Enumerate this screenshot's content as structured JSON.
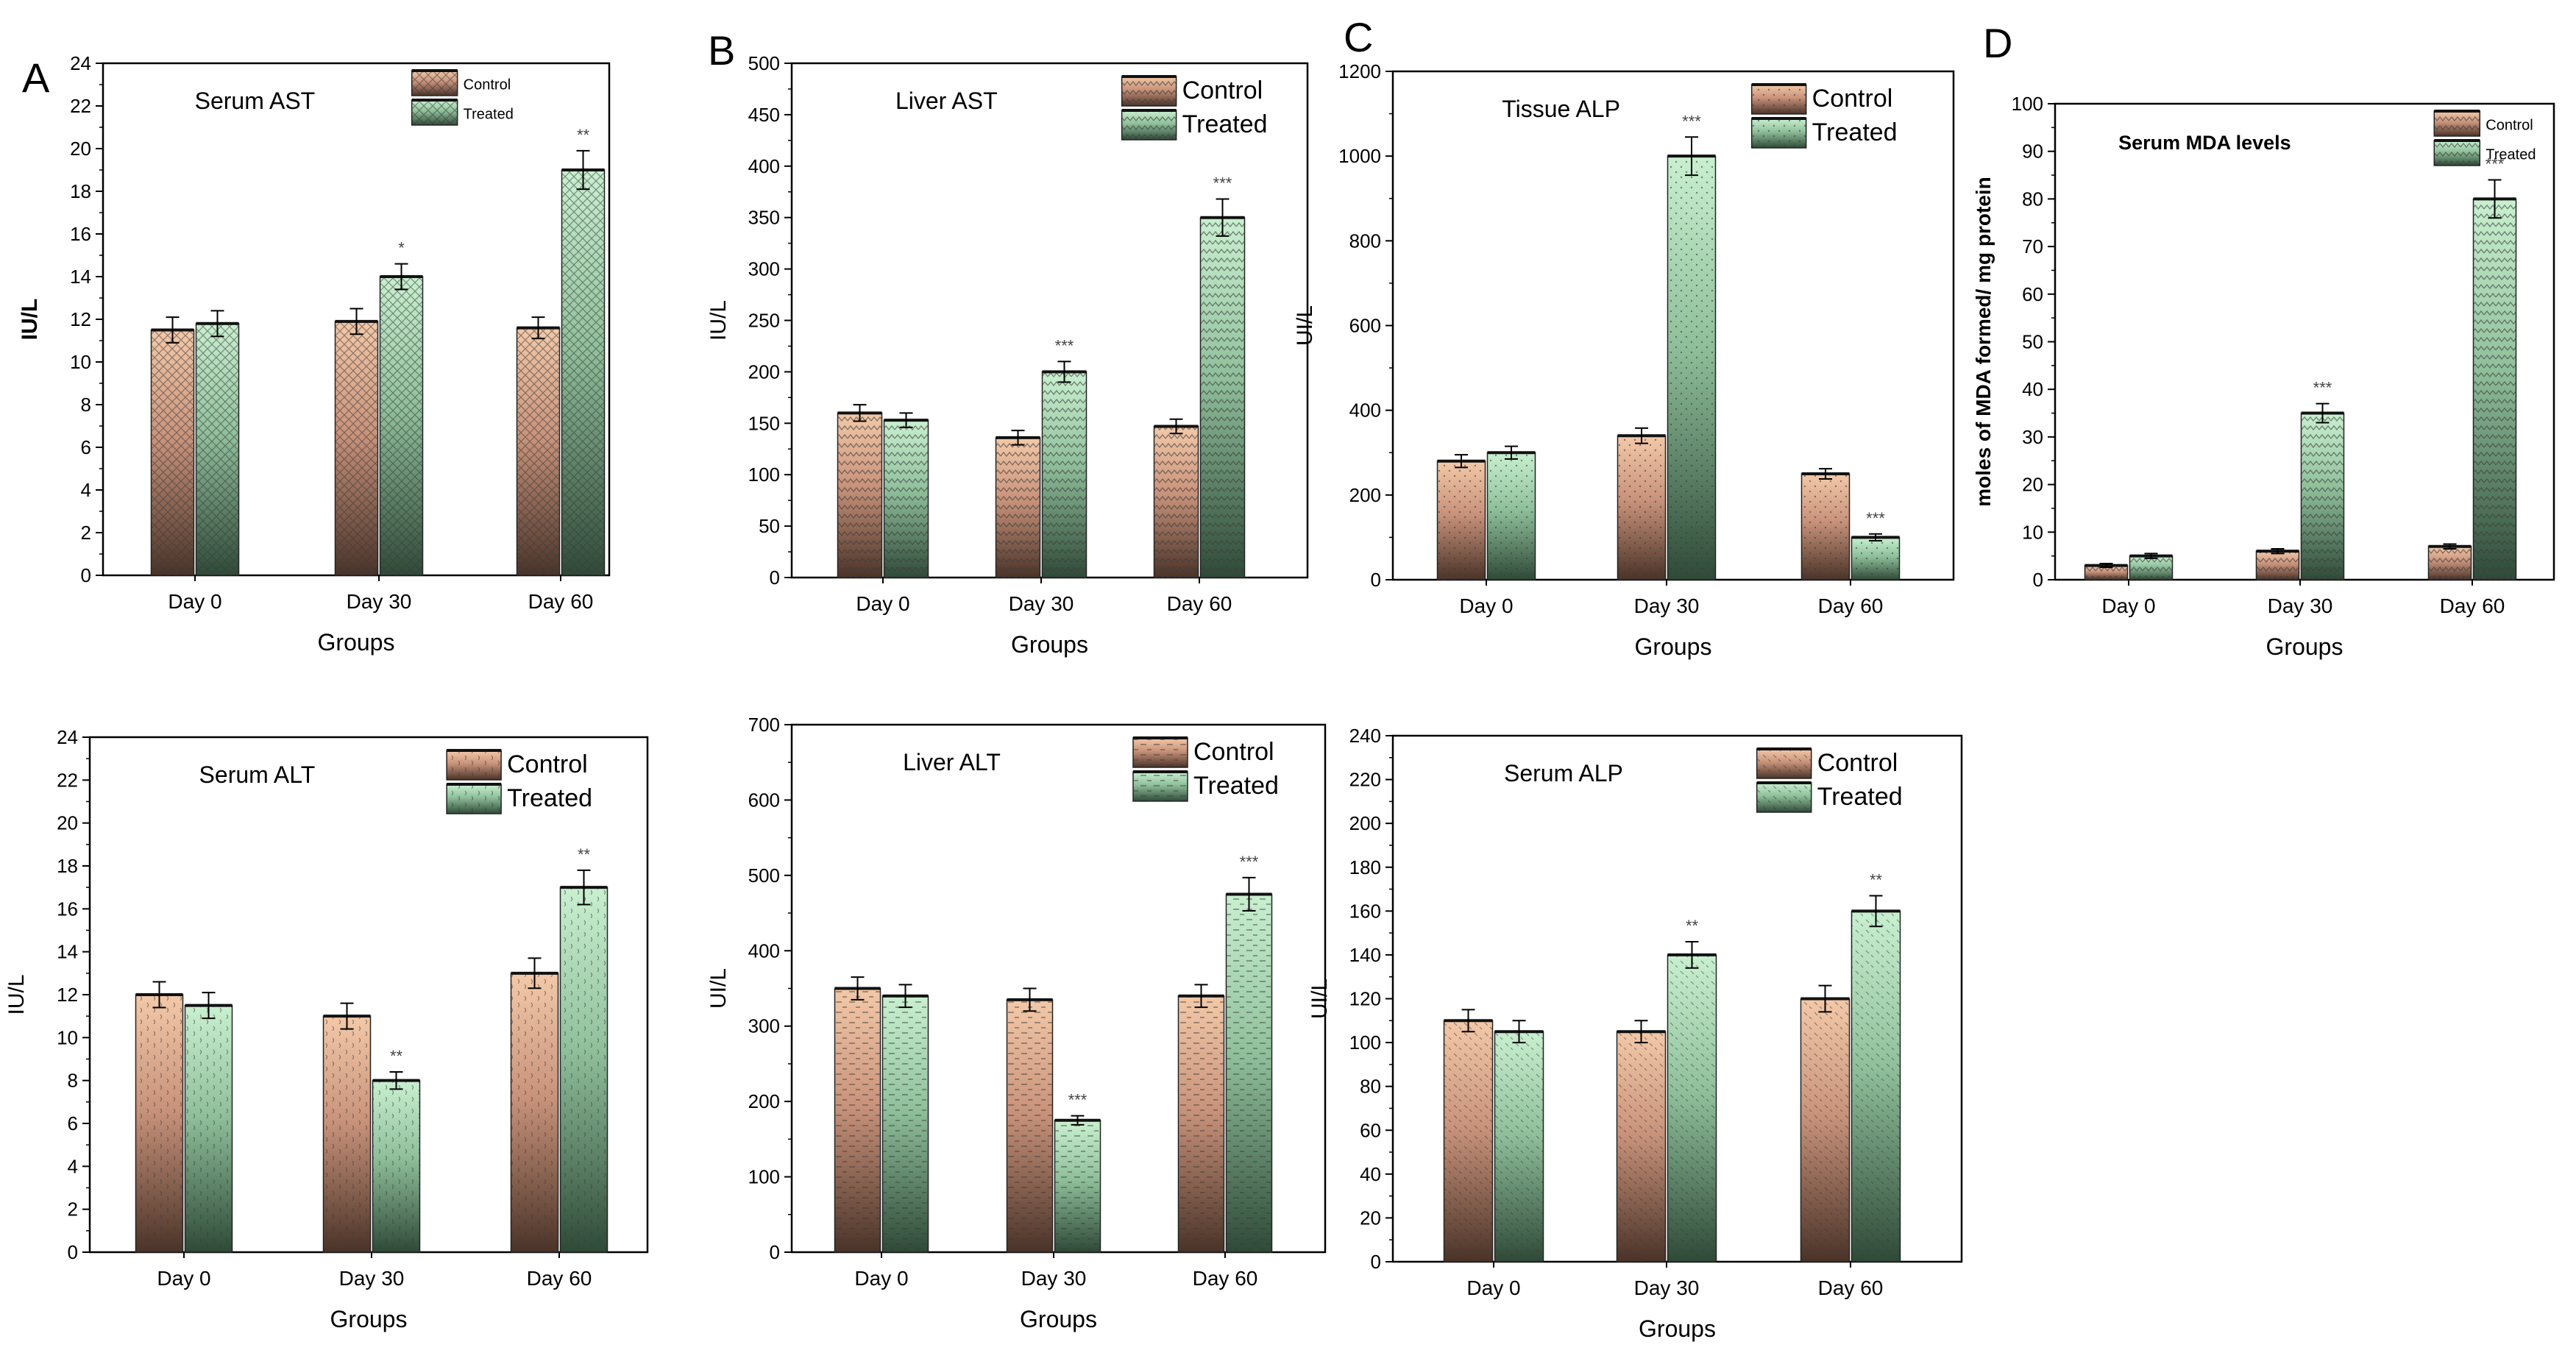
{
  "figure": {
    "colors": {
      "control_top": "#f3c9a8",
      "control_mid": "#c8927a",
      "control_bottom": "#4a3328",
      "treated_top": "#c9f0d0",
      "treated_mid": "#8fbf9a",
      "treated_bottom": "#2f4a38",
      "pattern": "#3a3a3a",
      "axis": "#000000"
    },
    "legend": {
      "control": "Control",
      "treated": "Treated"
    }
  },
  "chart_data": [
    {
      "id": "serum-ast",
      "panel_letter": "A",
      "type": "bar",
      "title": "Serum AST",
      "xlabel": "Groups",
      "ylabel": "IU/L",
      "categories": [
        "Day 0",
        "Day 30",
        "Day 60"
      ],
      "ylim": [
        0,
        24
      ],
      "yticks": [
        0,
        2,
        4,
        6,
        8,
        10,
        12,
        14,
        16,
        18,
        20,
        22,
        24
      ],
      "pattern": "cross",
      "legend_size": "small",
      "ylabel_bold": true,
      "series": [
        {
          "name": "Control",
          "values": [
            11.5,
            11.9,
            11.6
          ],
          "errors": [
            0.6,
            0.6,
            0.5
          ],
          "sig": [
            "",
            "",
            ""
          ]
        },
        {
          "name": "Treated",
          "values": [
            11.8,
            14.0,
            19.0
          ],
          "errors": [
            0.6,
            0.6,
            0.9
          ],
          "sig": [
            "",
            "*",
            "**"
          ]
        }
      ]
    },
    {
      "id": "liver-ast",
      "panel_letter": "B",
      "type": "bar",
      "title": "Liver AST",
      "xlabel": "Groups",
      "ylabel": "IU/L",
      "categories": [
        "Day 0",
        "Day 30",
        "Day 60"
      ],
      "ylim": [
        0,
        500
      ],
      "yticks": [
        0,
        50,
        100,
        150,
        200,
        250,
        300,
        350,
        400,
        450,
        500
      ],
      "pattern": "zigzag",
      "legend_size": "large",
      "ylabel_bold": false,
      "series": [
        {
          "name": "Control",
          "values": [
            160,
            136,
            147
          ],
          "errors": [
            8,
            7,
            7
          ],
          "sig": [
            "",
            "",
            ""
          ]
        },
        {
          "name": "Treated",
          "values": [
            153,
            200,
            350
          ],
          "errors": [
            7,
            10,
            18
          ],
          "sig": [
            "",
            "***",
            "***"
          ]
        }
      ]
    },
    {
      "id": "tissue-alp",
      "panel_letter": "C",
      "type": "bar",
      "title": "Tissue ALP",
      "xlabel": "Groups",
      "ylabel": "UI/L",
      "categories": [
        "Day 0",
        "Day 30",
        "Day 60"
      ],
      "ylim": [
        0,
        1200
      ],
      "yticks": [
        0,
        200,
        400,
        600,
        800,
        1000,
        1200
      ],
      "pattern": "dots",
      "legend_size": "large",
      "ylabel_bold": false,
      "series": [
        {
          "name": "Control",
          "values": [
            280,
            340,
            250
          ],
          "errors": [
            15,
            18,
            12
          ],
          "sig": [
            "",
            "",
            ""
          ]
        },
        {
          "name": "Treated",
          "values": [
            300,
            1000,
            100
          ],
          "errors": [
            15,
            45,
            8
          ],
          "sig": [
            "",
            "***",
            "***"
          ]
        }
      ]
    },
    {
      "id": "serum-mda",
      "panel_letter": "D",
      "type": "bar",
      "title": "Serum MDA levels",
      "xlabel": "Groups",
      "ylabel": "moles of MDA formed/ mg protein",
      "categories": [
        "Day 0",
        "Day 30",
        "Day 60"
      ],
      "ylim": [
        0,
        100
      ],
      "yticks": [
        0,
        10,
        20,
        30,
        40,
        50,
        60,
        70,
        80,
        90,
        100
      ],
      "pattern": "zigzag",
      "legend_size": "small",
      "ylabel_bold": true,
      "series": [
        {
          "name": "Control",
          "values": [
            3,
            6,
            7
          ],
          "errors": [
            0.4,
            0.5,
            0.5
          ],
          "sig": [
            "",
            "",
            ""
          ]
        },
        {
          "name": "Treated",
          "values": [
            5,
            35,
            80
          ],
          "errors": [
            0.5,
            2,
            4
          ],
          "sig": [
            "",
            "***",
            "***"
          ]
        }
      ]
    },
    {
      "id": "serum-alt",
      "panel_letter": "",
      "type": "bar",
      "title": "Serum ALT",
      "xlabel": "Groups",
      "ylabel": "IU/L",
      "categories": [
        "Day 0",
        "Day 30",
        "Day 60"
      ],
      "ylim": [
        0,
        24
      ],
      "yticks": [
        0,
        2,
        4,
        6,
        8,
        10,
        12,
        14,
        16,
        18,
        20,
        22,
        24
      ],
      "pattern": "wave",
      "legend_size": "large",
      "ylabel_bold": false,
      "series": [
        {
          "name": "Control",
          "values": [
            12.0,
            11.0,
            13.0
          ],
          "errors": [
            0.6,
            0.6,
            0.7
          ],
          "sig": [
            "",
            "",
            ""
          ]
        },
        {
          "name": "Treated",
          "values": [
            11.5,
            8.0,
            17.0
          ],
          "errors": [
            0.6,
            0.4,
            0.8
          ],
          "sig": [
            "",
            "**",
            "**"
          ]
        }
      ]
    },
    {
      "id": "liver-alt",
      "panel_letter": "",
      "type": "bar",
      "title": "Liver ALT",
      "xlabel": "Groups",
      "ylabel": "UI/L",
      "categories": [
        "Day 0",
        "Day 30",
        "Day 60"
      ],
      "ylim": [
        0,
        700
      ],
      "yticks": [
        0,
        100,
        200,
        300,
        400,
        500,
        600,
        700
      ],
      "pattern": "dash",
      "legend_size": "large",
      "ylabel_bold": false,
      "series": [
        {
          "name": "Control",
          "values": [
            350,
            335,
            340
          ],
          "errors": [
            15,
            15,
            15
          ],
          "sig": [
            "",
            "",
            ""
          ]
        },
        {
          "name": "Treated",
          "values": [
            340,
            175,
            475
          ],
          "errors": [
            15,
            6,
            22
          ],
          "sig": [
            "",
            "***",
            "***"
          ]
        }
      ]
    },
    {
      "id": "serum-alp",
      "panel_letter": "",
      "type": "bar",
      "title": "Serum ALP",
      "xlabel": "Groups",
      "ylabel": "UI/L",
      "categories": [
        "Day 0",
        "Day 30",
        "Day 60"
      ],
      "ylim": [
        0,
        240
      ],
      "yticks": [
        0,
        20,
        40,
        60,
        80,
        100,
        120,
        140,
        160,
        180,
        200,
        220,
        240
      ],
      "pattern": "diag",
      "legend_size": "large",
      "ylabel_bold": false,
      "series": [
        {
          "name": "Control",
          "values": [
            110,
            105,
            120
          ],
          "errors": [
            5,
            5,
            6
          ],
          "sig": [
            "",
            "",
            ""
          ]
        },
        {
          "name": "Treated",
          "values": [
            105,
            140,
            160
          ],
          "errors": [
            5,
            6,
            7
          ],
          "sig": [
            "",
            "**",
            "**"
          ]
        }
      ]
    }
  ]
}
